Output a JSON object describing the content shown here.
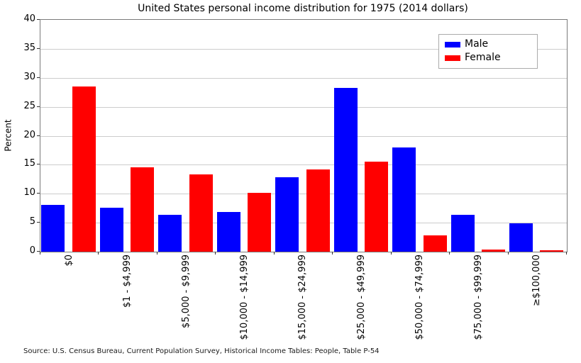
{
  "figure": {
    "source_note": "Source: U.S. Census Bureau, Current Population Survey, Historical Income Tables: People, Table P-54"
  },
  "chart_data": {
    "type": "bar",
    "title": "United States personal income distribution for 1975 (2014 dollars)",
    "xlabel": "",
    "ylabel": "Percent",
    "ylim": [
      0,
      40
    ],
    "ytick_step": 5,
    "grid": "horizontal",
    "legend_position": "upper right",
    "categories": [
      "$0",
      "$1 - $4,999",
      "$5,000 - $9,999",
      "$10,000 - $14,999",
      "$15,000 - $24,999",
      "$25,000 - $49,999",
      "$50,000 - $74,999",
      "$75,000 - $99,999",
      "≥$100,000"
    ],
    "series": [
      {
        "name": "Male",
        "color": "#0000ff",
        "values": [
          8.1,
          7.6,
          6.4,
          6.9,
          12.8,
          28.2,
          18.0,
          6.3,
          4.9
        ]
      },
      {
        "name": "Female",
        "color": "#ff0000",
        "values": [
          28.5,
          14.6,
          13.3,
          10.1,
          14.2,
          15.5,
          2.8,
          0.4,
          0.2
        ]
      }
    ]
  }
}
